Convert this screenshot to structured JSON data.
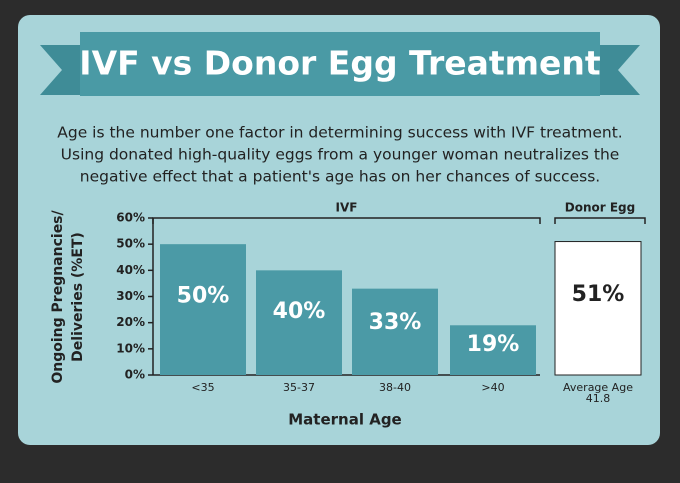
{
  "chart_data": {
    "type": "bar",
    "title": "IVF vs Donor Egg Treatment",
    "subtitle_lines": [
      "Age is the number one factor in determining success with IVF treatment.",
      "Using donated high-quality eggs from a younger woman neutralizes the",
      "negative effect that a patient's age has on her chances of success."
    ],
    "y_label_lines": [
      "Ongoing Pregnancies/",
      "Deliveries (%ET)"
    ],
    "x_label": "Maternal Age",
    "groups": [
      {
        "name": "IVF",
        "size": 4
      },
      {
        "name": "Donor Egg",
        "size": 1
      }
    ],
    "categories": [
      "<35",
      "35-37",
      "38-40",
      ">40",
      "Average Age 41.8"
    ],
    "values": [
      50,
      40,
      33,
      19,
      51
    ],
    "value_labels": [
      "50%",
      "40%",
      "33%",
      "19%",
      "51%"
    ],
    "colors": [
      "#4b9aa6",
      "#4b9aa6",
      "#4b9aa6",
      "#4b9aa6",
      "#ffffff"
    ],
    "ylim": [
      0,
      60
    ],
    "yticks": [
      {
        "value": 0,
        "label": "0%"
      },
      {
        "value": 10,
        "label": "10%"
      },
      {
        "value": 20,
        "label": "20%"
      },
      {
        "value": 30,
        "label": "30%"
      },
      {
        "value": 40,
        "label": "40%"
      },
      {
        "value": 50,
        "label": "50%"
      },
      {
        "value": 60,
        "label": "60%"
      }
    ]
  }
}
